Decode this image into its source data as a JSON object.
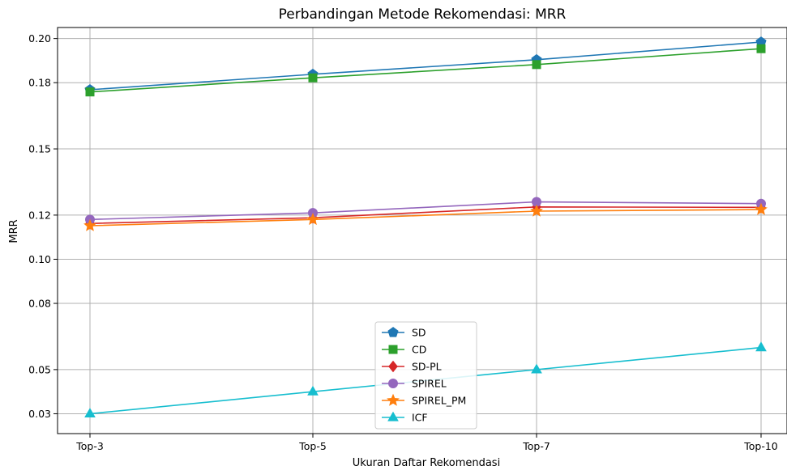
{
  "chart_data": {
    "type": "line",
    "title": "Perbandingan Metode Rekomendasi: MRR",
    "xlabel": "Ukuran Daftar Rekomendasi",
    "ylabel": "MRR",
    "categories": [
      "Top-3",
      "Top-5",
      "Top-7",
      "Top-10"
    ],
    "ylim": [
      0.021,
      0.205
    ],
    "yticks": [
      0.03,
      0.05,
      0.08,
      0.1,
      0.12,
      0.15,
      0.18,
      0.2
    ],
    "ytick_labels": [
      "0.03",
      "0.05",
      "0.08",
      "0.10",
      "0.12",
      "0.15",
      "0.18",
      "0.20"
    ],
    "grid": true,
    "legend_position": "lower center",
    "series": [
      {
        "name": "SD",
        "color": "#1f77b4",
        "marker": "pentagon",
        "values": [
          0.1768,
          0.1838,
          0.1904,
          0.1984
        ]
      },
      {
        "name": "CD",
        "color": "#2ca02c",
        "marker": "square",
        "values": [
          0.1758,
          0.1822,
          0.1882,
          0.1954
        ]
      },
      {
        "name": "SD-PL",
        "color": "#d62728",
        "marker": "diamond",
        "values": [
          0.1162,
          0.1188,
          0.1237,
          0.1235
        ]
      },
      {
        "name": "SPIREL",
        "color": "#9467bd",
        "marker": "circle",
        "values": [
          0.118,
          0.121,
          0.126,
          0.1252
        ]
      },
      {
        "name": "SPIREL_PM",
        "color": "#ff7f0e",
        "marker": "star",
        "values": [
          0.1152,
          0.118,
          0.1218,
          0.1225
        ]
      },
      {
        "name": "ICF",
        "color": "#17becf",
        "marker": "triangle",
        "values": [
          0.03,
          0.04,
          0.05,
          0.06
        ]
      }
    ]
  }
}
